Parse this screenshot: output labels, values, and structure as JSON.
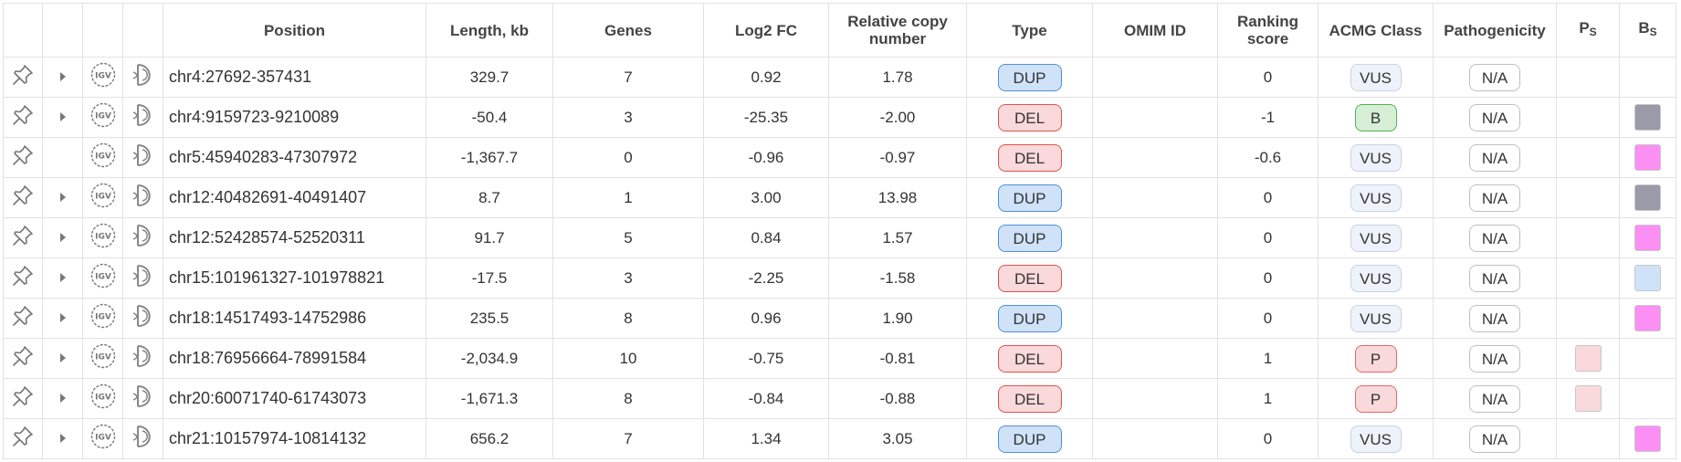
{
  "headers": {
    "position": "Position",
    "length": "Length, kb",
    "genes": "Genes",
    "log2fc": "Log2 FC",
    "rel_copy_1": "Relative copy",
    "rel_copy_2": "number",
    "type": "Type",
    "omim": "OMIM ID",
    "ranking_1": "Ranking",
    "ranking_2": "score",
    "acmg": "ACMG Class",
    "pathogenicity": "Pathogenicity",
    "ps_main": "P",
    "ps_sub": "S",
    "bs_main": "B",
    "bs_sub": "S"
  },
  "icons": {
    "pin": "pin-icon",
    "expand": "expand-caret-icon",
    "igv": "igv-icon",
    "decipher": "decipher-icon"
  },
  "colors": {
    "dup_bg": "#cfe2f8",
    "dup_border": "#4e8fdb",
    "del_bg": "#f9d9dc",
    "del_border": "#e0524a",
    "benign_bg": "#d6efd6",
    "benign_border": "#52b352",
    "bs_gray": "#9b9aa8",
    "bs_pink": "#fc8ff3",
    "bs_blue": "#cfe2f8",
    "ps_pink": "#f9d9dc"
  },
  "rows": [
    {
      "position": "chr4:27692-357431",
      "length": "329.7",
      "genes": "7",
      "log2fc": "0.92",
      "relcopy": "1.78",
      "type": "DUP",
      "omim": "",
      "ranking": "0",
      "acmg": "VUS",
      "pathogenicity": "N/A",
      "ps": "",
      "bs": "",
      "expand": true
    },
    {
      "position": "chr4:9159723-9210089",
      "length": "-50.4",
      "genes": "3",
      "log2fc": "-25.35",
      "relcopy": "-2.00",
      "type": "DEL",
      "omim": "",
      "ranking": "-1",
      "acmg": "B",
      "pathogenicity": "N/A",
      "ps": "",
      "bs": "#9b9aa8",
      "expand": true
    },
    {
      "position": "chr5:45940283-47307972",
      "length": "-1,367.7",
      "genes": "0",
      "log2fc": "-0.96",
      "relcopy": "-0.97",
      "type": "DEL",
      "omim": "",
      "ranking": "-0.6",
      "acmg": "VUS",
      "pathogenicity": "N/A",
      "ps": "",
      "bs": "#fc8ff3",
      "expand": false
    },
    {
      "position": "chr12:40482691-40491407",
      "length": "8.7",
      "genes": "1",
      "log2fc": "3.00",
      "relcopy": "13.98",
      "type": "DUP",
      "omim": "",
      "ranking": "0",
      "acmg": "VUS",
      "pathogenicity": "N/A",
      "ps": "",
      "bs": "#9b9aa8",
      "expand": true
    },
    {
      "position": "chr12:52428574-52520311",
      "length": "91.7",
      "genes": "5",
      "log2fc": "0.84",
      "relcopy": "1.57",
      "type": "DUP",
      "omim": "",
      "ranking": "0",
      "acmg": "VUS",
      "pathogenicity": "N/A",
      "ps": "",
      "bs": "#fc8ff3",
      "expand": true
    },
    {
      "position": "chr15:101961327-101978821",
      "length": "-17.5",
      "genes": "3",
      "log2fc": "-2.25",
      "relcopy": "-1.58",
      "type": "DEL",
      "omim": "",
      "ranking": "0",
      "acmg": "VUS",
      "pathogenicity": "N/A",
      "ps": "",
      "bs": "#cfe2f8",
      "expand": true
    },
    {
      "position": "chr18:14517493-14752986",
      "length": "235.5",
      "genes": "8",
      "log2fc": "0.96",
      "relcopy": "1.90",
      "type": "DUP",
      "omim": "",
      "ranking": "0",
      "acmg": "VUS",
      "pathogenicity": "N/A",
      "ps": "",
      "bs": "#fc8ff3",
      "expand": true
    },
    {
      "position": "chr18:76956664-78991584",
      "length": "-2,034.9",
      "genes": "10",
      "log2fc": "-0.75",
      "relcopy": "-0.81",
      "type": "DEL",
      "omim": "",
      "ranking": "1",
      "acmg": "P",
      "pathogenicity": "N/A",
      "ps": "#f9d9dc",
      "bs": "",
      "expand": true
    },
    {
      "position": "chr20:60071740-61743073",
      "length": "-1,671.3",
      "genes": "8",
      "log2fc": "-0.84",
      "relcopy": "-0.88",
      "type": "DEL",
      "omim": "",
      "ranking": "1",
      "acmg": "P",
      "pathogenicity": "N/A",
      "ps": "#f9d9dc",
      "bs": "",
      "expand": true
    },
    {
      "position": "chr21:10157974-10814132",
      "length": "656.2",
      "genes": "7",
      "log2fc": "1.34",
      "relcopy": "3.05",
      "type": "DUP",
      "omim": "",
      "ranking": "0",
      "acmg": "VUS",
      "pathogenicity": "N/A",
      "ps": "",
      "bs": "#fc8ff3",
      "expand": true
    }
  ]
}
